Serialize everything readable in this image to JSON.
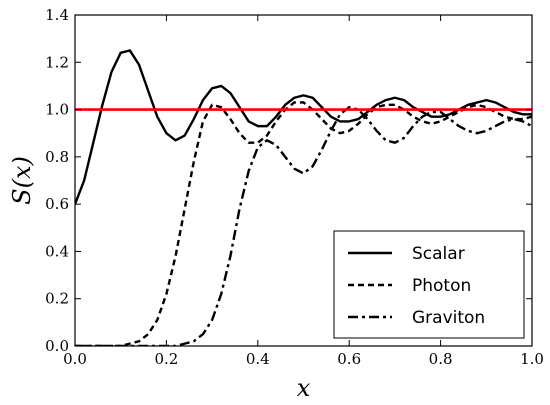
{
  "chart_data": {
    "type": "line",
    "title": "",
    "xlabel": "x",
    "ylabel": "S(x)",
    "xlim": [
      0.0,
      1.0
    ],
    "ylim": [
      0.0,
      1.4
    ],
    "xticks": [
      "0.0",
      "0.2",
      "0.4",
      "0.6",
      "0.8",
      "1.0"
    ],
    "yticks": [
      "0.0",
      "0.2",
      "0.4",
      "0.6",
      "0.8",
      "1.0",
      "1.2",
      "1.4"
    ],
    "grid": false,
    "legend_position": "bottom-right",
    "reference_line": {
      "y": 1.0,
      "color": "#ff0000"
    },
    "series": [
      {
        "name": "Scalar",
        "style": "solid",
        "color": "#000000",
        "x": [
          0.0,
          0.02,
          0.04,
          0.06,
          0.08,
          0.1,
          0.12,
          0.14,
          0.16,
          0.18,
          0.2,
          0.22,
          0.24,
          0.26,
          0.28,
          0.3,
          0.32,
          0.34,
          0.36,
          0.38,
          0.4,
          0.42,
          0.44,
          0.46,
          0.48,
          0.5,
          0.52,
          0.54,
          0.56,
          0.58,
          0.6,
          0.62,
          0.64,
          0.66,
          0.68,
          0.7,
          0.72,
          0.74,
          0.76,
          0.78,
          0.8,
          0.82,
          0.84,
          0.86,
          0.88,
          0.9,
          0.92,
          0.94,
          0.96,
          0.98,
          1.0
        ],
        "y": [
          0.6,
          0.7,
          0.86,
          1.02,
          1.16,
          1.24,
          1.25,
          1.19,
          1.08,
          0.97,
          0.9,
          0.87,
          0.89,
          0.96,
          1.04,
          1.09,
          1.1,
          1.07,
          1.01,
          0.95,
          0.93,
          0.93,
          0.97,
          1.02,
          1.05,
          1.06,
          1.05,
          1.01,
          0.97,
          0.95,
          0.95,
          0.96,
          0.99,
          1.02,
          1.04,
          1.05,
          1.04,
          1.01,
          0.99,
          0.97,
          0.97,
          0.98,
          1.0,
          1.02,
          1.03,
          1.04,
          1.03,
          1.01,
          0.99,
          0.98,
          0.98
        ]
      },
      {
        "name": "Photon",
        "style": "dashed",
        "color": "#000000",
        "x": [
          0.0,
          0.02,
          0.04,
          0.06,
          0.08,
          0.1,
          0.12,
          0.14,
          0.16,
          0.18,
          0.2,
          0.22,
          0.24,
          0.26,
          0.28,
          0.3,
          0.32,
          0.34,
          0.36,
          0.38,
          0.4,
          0.42,
          0.44,
          0.46,
          0.48,
          0.5,
          0.52,
          0.54,
          0.56,
          0.58,
          0.6,
          0.62,
          0.64,
          0.66,
          0.68,
          0.7,
          0.72,
          0.74,
          0.76,
          0.78,
          0.8,
          0.82,
          0.84,
          0.86,
          0.88,
          0.9,
          0.92,
          0.94,
          0.96,
          0.98,
          1.0
        ],
        "y": [
          0.0,
          0.0,
          0.0,
          0.0,
          0.0,
          0.0,
          0.01,
          0.02,
          0.05,
          0.11,
          0.22,
          0.38,
          0.58,
          0.78,
          0.95,
          1.02,
          1.01,
          0.96,
          0.9,
          0.86,
          0.86,
          0.89,
          0.95,
          1.0,
          1.03,
          1.03,
          1.0,
          0.96,
          0.92,
          0.9,
          0.91,
          0.94,
          0.98,
          1.01,
          1.02,
          1.02,
          1.0,
          0.97,
          0.95,
          0.94,
          0.95,
          0.97,
          0.99,
          1.01,
          1.02,
          1.01,
          0.99,
          0.97,
          0.96,
          0.96,
          0.97
        ]
      },
      {
        "name": "Graviton",
        "style": "dashdot",
        "color": "#000000",
        "x": [
          0.0,
          0.02,
          0.04,
          0.06,
          0.08,
          0.1,
          0.12,
          0.14,
          0.16,
          0.18,
          0.2,
          0.22,
          0.24,
          0.26,
          0.28,
          0.3,
          0.32,
          0.34,
          0.36,
          0.38,
          0.4,
          0.42,
          0.44,
          0.46,
          0.48,
          0.5,
          0.52,
          0.54,
          0.56,
          0.58,
          0.6,
          0.62,
          0.64,
          0.66,
          0.68,
          0.7,
          0.72,
          0.74,
          0.76,
          0.78,
          0.8,
          0.82,
          0.84,
          0.86,
          0.88,
          0.9,
          0.92,
          0.94,
          0.96,
          0.98,
          1.0
        ],
        "y": [
          0.0,
          0.0,
          0.0,
          0.0,
          0.0,
          0.0,
          0.0,
          0.0,
          0.0,
          0.0,
          0.0,
          0.0,
          0.01,
          0.02,
          0.05,
          0.11,
          0.22,
          0.38,
          0.58,
          0.74,
          0.84,
          0.87,
          0.85,
          0.8,
          0.75,
          0.73,
          0.76,
          0.83,
          0.91,
          0.98,
          1.01,
          1.0,
          0.96,
          0.91,
          0.87,
          0.86,
          0.88,
          0.93,
          0.97,
          0.99,
          0.99,
          0.96,
          0.93,
          0.91,
          0.9,
          0.91,
          0.93,
          0.95,
          0.96,
          0.95,
          0.93
        ]
      }
    ]
  }
}
